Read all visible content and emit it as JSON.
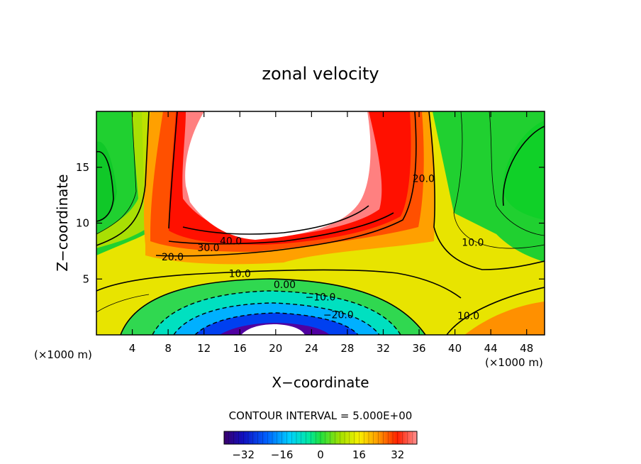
{
  "chart_data": {
    "type": "heatmap",
    "title": "zonal velocity",
    "xlabel": "X−coordinate",
    "ylabel": "Z−coordinate",
    "xlim": [
      0,
      50
    ],
    "ylim": [
      0,
      20
    ],
    "x_ticks": [
      4,
      8,
      12,
      16,
      20,
      24,
      28,
      32,
      36,
      40,
      44,
      48
    ],
    "x_tick_labels": [
      "4",
      "8",
      "12",
      "16",
      "20",
      "24",
      "28",
      "32",
      "36",
      "40",
      "44",
      "48"
    ],
    "y_ticks": [
      5,
      10,
      15
    ],
    "y_tick_labels": [
      "5",
      "10",
      "15"
    ],
    "x_unit_left": "(×1000 m)",
    "x_unit_right": "(×1000 m)",
    "contour_interval_text": "CONTOUR INTERVAL = 5.000E+00",
    "contour_labels": [
      {
        "text": "40.0",
        "x": 15.0,
        "z": 8.4
      },
      {
        "text": "30.0",
        "x": 12.5,
        "z": 7.8
      },
      {
        "text": "20.0",
        "x": 8.5,
        "z": 7.0
      },
      {
        "text": "10.0",
        "x": 16.0,
        "z": 5.5
      },
      {
        "text": "0.00",
        "x": 21.0,
        "z": 4.5
      },
      {
        "text": "−10.0",
        "x": 25.0,
        "z": 3.4
      },
      {
        "text": "−20.0",
        "x": 27.0,
        "z": 1.8
      },
      {
        "text": "20.0",
        "x": 36.5,
        "z": 14.0
      },
      {
        "text": "10.0",
        "x": 42.0,
        "z": 8.3
      },
      {
        "text": "10.0",
        "x": 41.5,
        "z": 1.7
      }
    ],
    "colorbar": {
      "min": -40,
      "max": 40,
      "ticks": [
        -32,
        -16,
        0,
        16,
        32
      ],
      "tick_labels": [
        "−32",
        "−16",
        "0",
        "16",
        "32"
      ]
    },
    "features": [
      {
        "name": "positive jet core",
        "x_center": 20,
        "z_center": 14.5,
        "peak_value": 45
      },
      {
        "name": "negative core",
        "x_center": 20,
        "z_center": 0.2,
        "peak_value": -40
      }
    ]
  }
}
